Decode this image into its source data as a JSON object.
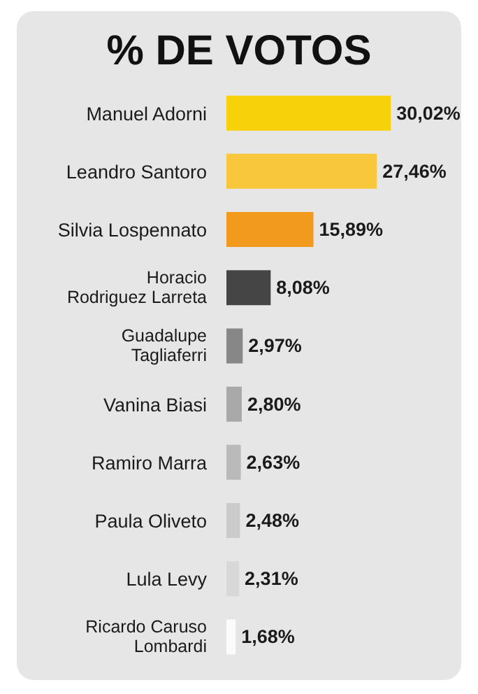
{
  "chart_data": {
    "type": "bar",
    "orientation": "horizontal",
    "title": "% DE VOTOS",
    "categories": [
      "Manuel Adorni",
      "Leandro Santoro",
      "Silvia Lospennato",
      "Horacio Rodriguez Larreta",
      "Guadalupe Tagliaferri",
      "Vanina Biasi",
      "Ramiro Marra",
      "Paula Oliveto",
      "Lula Levy",
      "Ricardo Caruso Lombardi"
    ],
    "values": [
      30.02,
      27.46,
      15.89,
      8.08,
      2.97,
      2.8,
      2.63,
      2.48,
      2.31,
      1.68
    ],
    "colors": [
      "#f7d20a",
      "#f8c73c",
      "#f29a1e",
      "#454545",
      "#878787",
      "#a9a9a9",
      "#bababa",
      "#cbcbcb",
      "#d8d8d8",
      "#fbfbfb"
    ],
    "value_labels": [
      "30,02%",
      "27,46%",
      "15,89%",
      "8,08%",
      "2,97%",
      "2,80%",
      "2,63%",
      "2,48%",
      "2,31%",
      "1,68%"
    ]
  }
}
